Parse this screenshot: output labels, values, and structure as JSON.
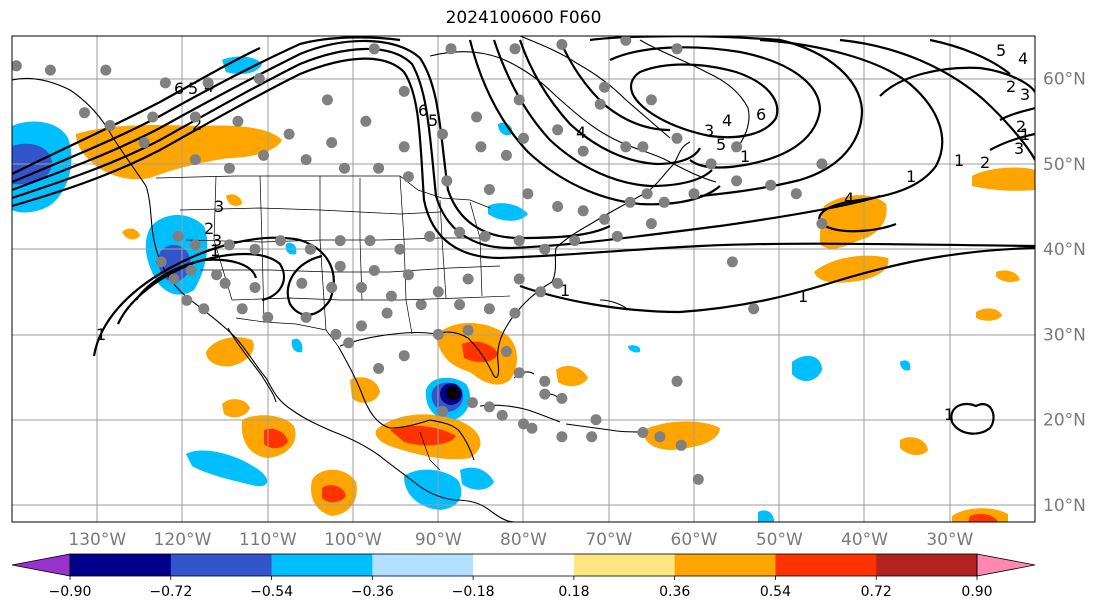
{
  "title": "2024100600 F060",
  "lat_ticks": [
    {
      "label": "60°N",
      "lat": 60
    },
    {
      "label": "50°N",
      "lat": 50
    },
    {
      "label": "40°N",
      "lat": 40
    },
    {
      "label": "30°N",
      "lat": 30
    },
    {
      "label": "20°N",
      "lat": 20
    },
    {
      "label": "10°N",
      "lat": 10
    }
  ],
  "lon_ticks": [
    {
      "label": "130°W",
      "lon": -130
    },
    {
      "label": "120°W",
      "lon": -120
    },
    {
      "label": "110°W",
      "lon": -110
    },
    {
      "label": "100°W",
      "lon": -100
    },
    {
      "label": "90°W",
      "lon": -90
    },
    {
      "label": "80°W",
      "lon": -80
    },
    {
      "label": "70°W",
      "lon": -70
    },
    {
      "label": "60°W",
      "lon": -60
    },
    {
      "label": "50°W",
      "lon": -50
    },
    {
      "label": "40°W",
      "lon": -40
    },
    {
      "label": "30°W",
      "lon": -30
    }
  ],
  "extent": {
    "lon_min": -140,
    "lon_max": -20,
    "lat_min": 8,
    "lat_max": 65
  },
  "colorbar": {
    "colors": [
      "#9932cc",
      "#00008b",
      "#3355cc",
      "#00bfff",
      "#b3e0ff",
      "#ffffff",
      "#ffe680",
      "#ffa500",
      "#ff3300",
      "#b22222",
      "#ff88b0"
    ],
    "under_color": "#9932cc",
    "over_color": "#ff88b0",
    "levels": [
      "−0.90",
      "−0.72",
      "−0.54",
      "−0.36",
      "−0.18",
      "0.18",
      "0.36",
      "0.54",
      "0.72",
      "0.90"
    ]
  },
  "contour_labels": [
    "6",
    "5",
    "4",
    "3",
    "2",
    "1",
    "6",
    "5",
    "4",
    "3",
    "2",
    "1",
    "1",
    "2",
    "4",
    "1",
    "1",
    "3",
    "4",
    "1",
    "2",
    "6",
    "5",
    "3",
    "2",
    "1",
    "1",
    "3",
    "5",
    "4",
    "1"
  ],
  "stations": [
    [
      -139.5,
      61.5
    ],
    [
      -135.5,
      61
    ],
    [
      -129,
      61
    ],
    [
      -122,
      59.5
    ],
    [
      -117,
      59.5
    ],
    [
      -111,
      60
    ],
    [
      -103,
      57.5
    ],
    [
      -97.5,
      63.5
    ],
    [
      -94,
      58.5
    ],
    [
      -88.5,
      63.5
    ],
    [
      -81,
      63.5
    ],
    [
      -75.5,
      64
    ],
    [
      -70.5,
      59
    ],
    [
      -68,
      64.5
    ],
    [
      -62,
      63.5
    ],
    [
      -65,
      57.5
    ],
    [
      -71,
      57
    ],
    [
      -80.5,
      57.5
    ],
    [
      -85.5,
      55.5
    ],
    [
      -82,
      51
    ],
    [
      -89.5,
      53.5
    ],
    [
      -94,
      52
    ],
    [
      -98.5,
      55
    ],
    [
      -102.5,
      52.5
    ],
    [
      -107.5,
      53.5
    ],
    [
      -113.5,
      55
    ],
    [
      -118.5,
      55.5
    ],
    [
      -123.5,
      55.5
    ],
    [
      -128.5,
      54.5
    ],
    [
      -131.5,
      56
    ],
    [
      -124.5,
      52.5
    ],
    [
      -118.5,
      50.5
    ],
    [
      -114.5,
      49.5
    ],
    [
      -110.5,
      51
    ],
    [
      -105.5,
      50.5
    ],
    [
      -101,
      49.5
    ],
    [
      -97,
      49.5
    ],
    [
      -93.5,
      48.5
    ],
    [
      -89,
      48
    ],
    [
      -84,
      47
    ],
    [
      -79.5,
      46.5
    ],
    [
      -76,
      45
    ],
    [
      -73,
      44.5
    ],
    [
      -70.5,
      43.5
    ],
    [
      -67.5,
      45.5
    ],
    [
      -65.5,
      46.5
    ],
    [
      -63.5,
      45.5
    ],
    [
      -60,
      46.5
    ],
    [
      -55,
      48
    ],
    [
      -48,
      46.5
    ],
    [
      -65,
      43
    ],
    [
      -69,
      41.5
    ],
    [
      -74,
      41
    ],
    [
      -77.5,
      40
    ],
    [
      -80.5,
      41
    ],
    [
      -84.5,
      41.5
    ],
    [
      -87.5,
      42
    ],
    [
      -91,
      41.5
    ],
    [
      -94.5,
      40
    ],
    [
      -98,
      41
    ],
    [
      -101.5,
      41
    ],
    [
      -105,
      40
    ],
    [
      -108.5,
      41
    ],
    [
      -111.5,
      40
    ],
    [
      -114.5,
      40.5
    ],
    [
      -118.5,
      40.5
    ],
    [
      -120.5,
      41.5
    ],
    [
      -122.5,
      38.5
    ],
    [
      -119,
      37.5
    ],
    [
      -115,
      36
    ],
    [
      -111.5,
      35.5
    ],
    [
      -106,
      36
    ],
    [
      -102.5,
      35.5
    ],
    [
      -99,
      35.5
    ],
    [
      -95.5,
      34.5
    ],
    [
      -92,
      33.5
    ],
    [
      -87.5,
      33.5
    ],
    [
      -84,
      33
    ],
    [
      -81,
      32.5
    ],
    [
      -78,
      35
    ],
    [
      -76,
      36
    ],
    [
      -80.5,
      36.5
    ],
    [
      -86.5,
      36.5
    ],
    [
      -90,
      35
    ],
    [
      -93.5,
      37
    ],
    [
      -97.5,
      37.5
    ],
    [
      -101.5,
      38
    ],
    [
      -96,
      32.5
    ],
    [
      -99,
      31
    ],
    [
      -102,
      30
    ],
    [
      -105.5,
      32
    ],
    [
      -110,
      32
    ],
    [
      -113,
      33
    ],
    [
      -117.5,
      33
    ],
    [
      -119.5,
      34
    ],
    [
      -121,
      36.5
    ],
    [
      -116,
      37
    ],
    [
      -100.5,
      29
    ],
    [
      -97,
      26
    ],
    [
      -94,
      27.5
    ],
    [
      -90,
      30
    ],
    [
      -86.5,
      30.5
    ],
    [
      -82,
      28
    ],
    [
      -80.5,
      25.5
    ],
    [
      -77.5,
      24.5
    ],
    [
      -75.5,
      22.5
    ],
    [
      -71.5,
      20
    ],
    [
      -79,
      19
    ],
    [
      -77.5,
      23
    ],
    [
      -89.5,
      21
    ],
    [
      -86,
      22
    ],
    [
      -84,
      21.5
    ],
    [
      -82.5,
      20.5
    ],
    [
      -80,
      19.5
    ],
    [
      -66,
      18.5
    ],
    [
      -64,
      18
    ],
    [
      -61.5,
      17
    ],
    [
      -59.5,
      13
    ],
    [
      -72,
      18
    ],
    [
      -75.5,
      18
    ],
    [
      -53,
      33
    ],
    [
      -62,
      24.5
    ],
    [
      -55.5,
      38.5
    ],
    [
      -45,
      43
    ],
    [
      -45,
      50
    ],
    [
      -51,
      47.5
    ],
    [
      -58,
      50
    ],
    [
      -55,
      52
    ],
    [
      -62,
      53
    ],
    [
      -66,
      52
    ],
    [
      -68,
      52
    ],
    [
      -73,
      51.5
    ],
    [
      -76,
      54
    ],
    [
      -80,
      53
    ],
    [
      -85,
      52
    ]
  ]
}
